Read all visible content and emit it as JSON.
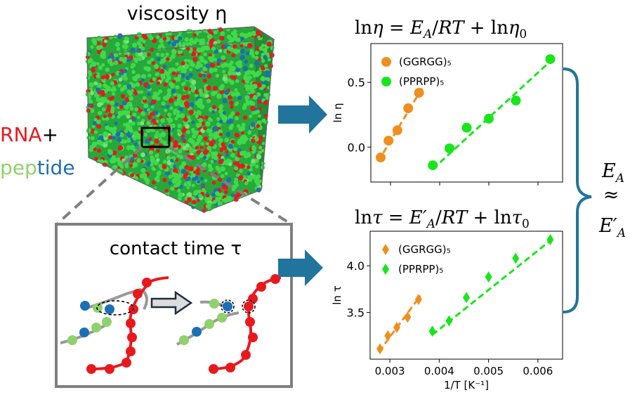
{
  "labels": {
    "viscosity": "viscosity η",
    "rna": "RNA",
    "plus": "+",
    "pep": "pep",
    "tide": "tide",
    "contact_time": "contact time τ",
    "eq_top": "lnη = E_A/RT + lnη₀",
    "eq_bottom": "lnτ = E′_A/RT + lnτ₀",
    "ea_line1": "E_A",
    "ea_line2": "≈",
    "ea_line3": "E′_A"
  },
  "colors": {
    "rna": "#e8191e",
    "peptide_green": "#8fd16a",
    "peptide_blue": "#1d6fb5",
    "arrow": "#21749c",
    "ggrgg": "#ef8e1d",
    "pprpp": "#18e61b",
    "box_border": "#7f7f7f",
    "brace": "#21749c"
  },
  "chart_data": [
    {
      "type": "scatter",
      "title": "lnη = E_A/RT + lnη₀",
      "ylabel": "ln η",
      "xlabel": "",
      "xlim": [
        0.0026,
        0.0065
      ],
      "ylim": [
        -0.27,
        0.8
      ],
      "yticks": [
        0.0,
        0.5
      ],
      "ytick_labels": [
        "0.0",
        "0.5"
      ],
      "xticks": [
        0.003,
        0.004,
        0.005,
        0.006
      ],
      "xtick_labels": [
        "",
        "",
        "",
        ""
      ],
      "legend": "top-left",
      "series": [
        {
          "name": "(GGRGG)₅",
          "marker": "circle",
          "color": "#ef8e1d",
          "x": [
            0.0028,
            0.00296,
            0.00314,
            0.00336,
            0.00358
          ],
          "y": [
            -0.08,
            0.05,
            0.13,
            0.3,
            0.42
          ],
          "fit": [
            [
              0.00275,
              -0.11
            ],
            [
              0.00365,
              0.46
            ]
          ]
        },
        {
          "name": "(PPRPP)₅",
          "marker": "circle",
          "color": "#18e61b",
          "x": [
            0.00386,
            0.0042,
            0.00455,
            0.005,
            0.00555,
            0.00625
          ],
          "y": [
            -0.14,
            -0.01,
            0.15,
            0.22,
            0.36,
            0.68
          ],
          "fit": [
            [
              0.00386,
              -0.17
            ],
            [
              0.0063,
              0.68
            ]
          ]
        }
      ]
    },
    {
      "type": "scatter",
      "title": "lnτ = E′_A/RT + lnτ₀",
      "ylabel": "ln τ",
      "xlabel": "1/T [K⁻¹]",
      "xlim": [
        0.0026,
        0.0065
      ],
      "ylim": [
        3.0,
        4.37
      ],
      "yticks": [
        3.5,
        4.0
      ],
      "ytick_labels": [
        "3.5",
        "4.0"
      ],
      "xticks": [
        0.003,
        0.004,
        0.005,
        0.006
      ],
      "xtick_labels": [
        "0.003",
        "0.004",
        "0.005",
        "0.006"
      ],
      "legend": "top-left",
      "series": [
        {
          "name": "(GGRGG)₅",
          "marker": "diamond",
          "color": "#ef8e1d",
          "x": [
            0.0028,
            0.00296,
            0.00314,
            0.00336,
            0.00358
          ],
          "y": [
            3.11,
            3.25,
            3.34,
            3.45,
            3.64
          ],
          "fit": [
            [
              0.00278,
              3.08
            ],
            [
              0.00362,
              3.68
            ]
          ]
        },
        {
          "name": "(PPRPP)₅",
          "marker": "diamond",
          "color": "#18e61b",
          "x": [
            0.00386,
            0.0042,
            0.00455,
            0.005,
            0.00555,
            0.00625
          ],
          "y": [
            3.3,
            3.41,
            3.66,
            3.88,
            4.08,
            4.28
          ],
          "fit": [
            [
              0.00386,
              3.26
            ],
            [
              0.0063,
              4.29
            ]
          ]
        }
      ]
    }
  ]
}
